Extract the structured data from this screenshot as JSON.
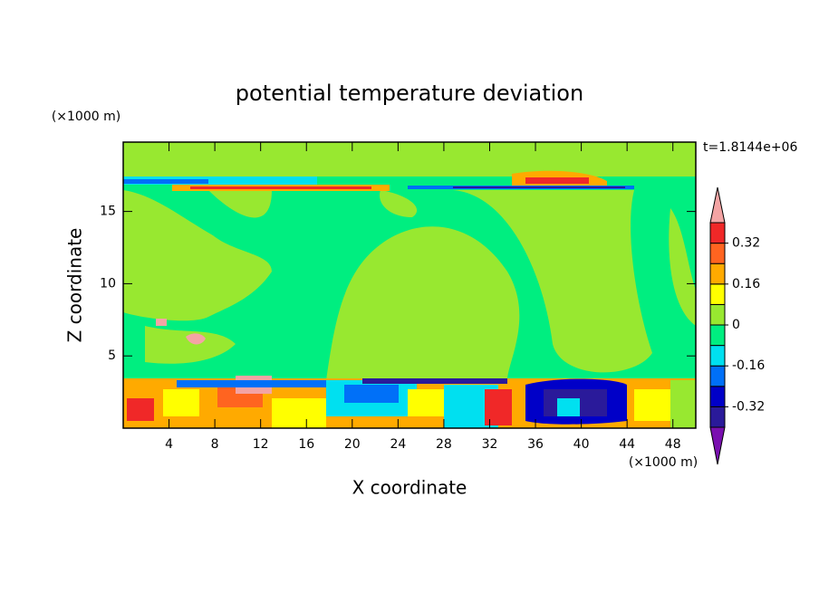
{
  "chart_data": {
    "type": "contour",
    "title": "potential temperature deviation",
    "x_label": "X coordinate",
    "y_label": "Z coordinate",
    "x_unit": "(×1000 m)",
    "y_unit": "(×1000 m)",
    "annotation": "t=1.8144e+06",
    "xlim": [
      0,
      50
    ],
    "ylim": [
      0,
      19.8
    ],
    "xticks": [
      4,
      8,
      12,
      16,
      20,
      24,
      28,
      32,
      36,
      40,
      44,
      48
    ],
    "yticks": [
      5,
      10,
      15
    ],
    "levels": [
      -0.4,
      -0.32,
      -0.24,
      -0.16,
      -0.08,
      0,
      0.08,
      0.16,
      0.24,
      0.32,
      0.4
    ],
    "colors": [
      "#7a10b0",
      "#2a1a9a",
      "#0000c8",
      "#0070f8",
      "#00e0f0",
      "#00ee80",
      "#98e830",
      "#ffff00",
      "#ffaa00",
      "#ff6420",
      "#f02828",
      "#f4a4a4"
    ],
    "colorbar_ticks": [
      0.32,
      0.16,
      0,
      -0.16,
      -0.32
    ]
  }
}
